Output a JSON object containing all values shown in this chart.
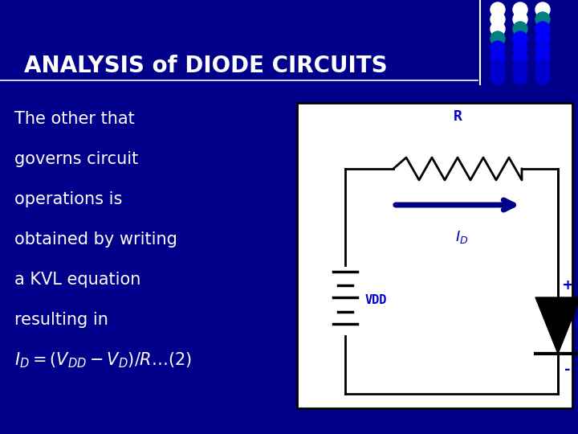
{
  "bg_color": "#00008B",
  "title": "ANALYSIS of DIODE CIRCUITS",
  "title_color": "#FFFFFF",
  "title_fontsize": 20,
  "body_text_color": "#FFFFFF",
  "body_fontsize": 15,
  "circuit_blue": "#0000CD",
  "dot_colors": [
    [
      "#FFFFFF",
      "#FFFFFF",
      "#FFFFFF"
    ],
    [
      "#FFFFFF",
      "#FFFFFF",
      "#008080"
    ],
    [
      "#FFFFFF",
      "#008080",
      "#0000FF"
    ],
    [
      "#008080",
      "#0000FF",
      "#0000FF"
    ],
    [
      "#0000EE",
      "#0000EE",
      "#0000EE"
    ],
    [
      "#0000EE",
      "#0000EE",
      "#0000EE"
    ],
    [
      "#0000CC",
      "#0000CC",
      "#0000CC"
    ],
    [
      "#0000CC",
      "#0000CC",
      "#0000CC"
    ]
  ],
  "text_lines": [
    "The other that",
    "governs circuit",
    "operations is",
    "obtained by writing",
    "a KVL equation",
    "resulting in"
  ]
}
